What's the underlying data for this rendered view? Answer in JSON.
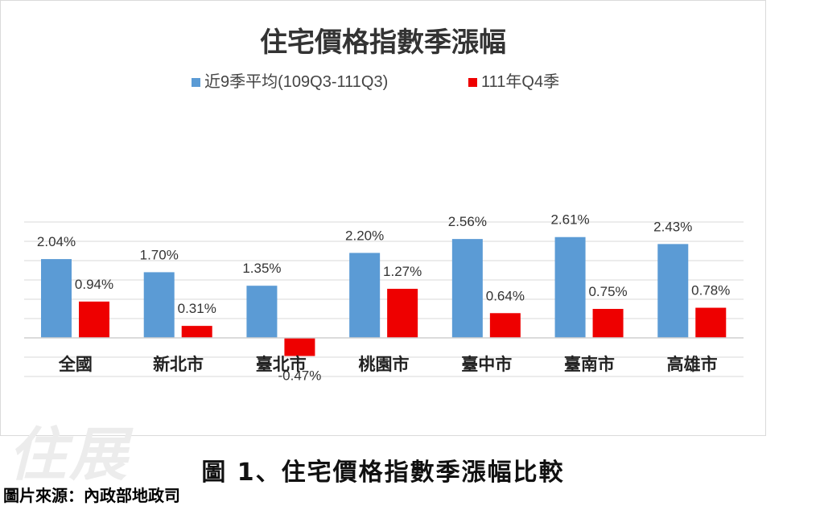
{
  "chart_data": {
    "type": "bar",
    "title": "住宅價格指數季漲幅",
    "categories": [
      "全國",
      "新北市",
      "臺北市",
      "桃園市",
      "臺中市",
      "臺南市",
      "高雄市"
    ],
    "series": [
      {
        "name": "近9季平均(109Q3-111Q3)",
        "values": [
          2.04,
          1.7,
          1.35,
          2.2,
          2.56,
          2.61,
          2.43
        ],
        "labels": [
          "2.04%",
          "1.70%",
          "1.35%",
          "2.20%",
          "2.56%",
          "2.61%",
          "2.43%"
        ]
      },
      {
        "name": "111年Q4季",
        "values": [
          0.94,
          0.31,
          -0.47,
          1.27,
          0.64,
          0.75,
          0.78
        ],
        "labels": [
          "0.94%",
          "0.31%",
          "-0.47%",
          "1.27%",
          "0.64%",
          "0.75%",
          "0.78%"
        ]
      }
    ],
    "ylim": [
      -1.0,
      3.0
    ],
    "grid": true,
    "legend": "top-center",
    "colors": [
      "#5b9bd5",
      "#ee0000"
    ]
  },
  "caption": "圖 1、住宅價格指數季漲幅比較",
  "source": "圖片來源：內政部地政司",
  "watermark": "住展"
}
